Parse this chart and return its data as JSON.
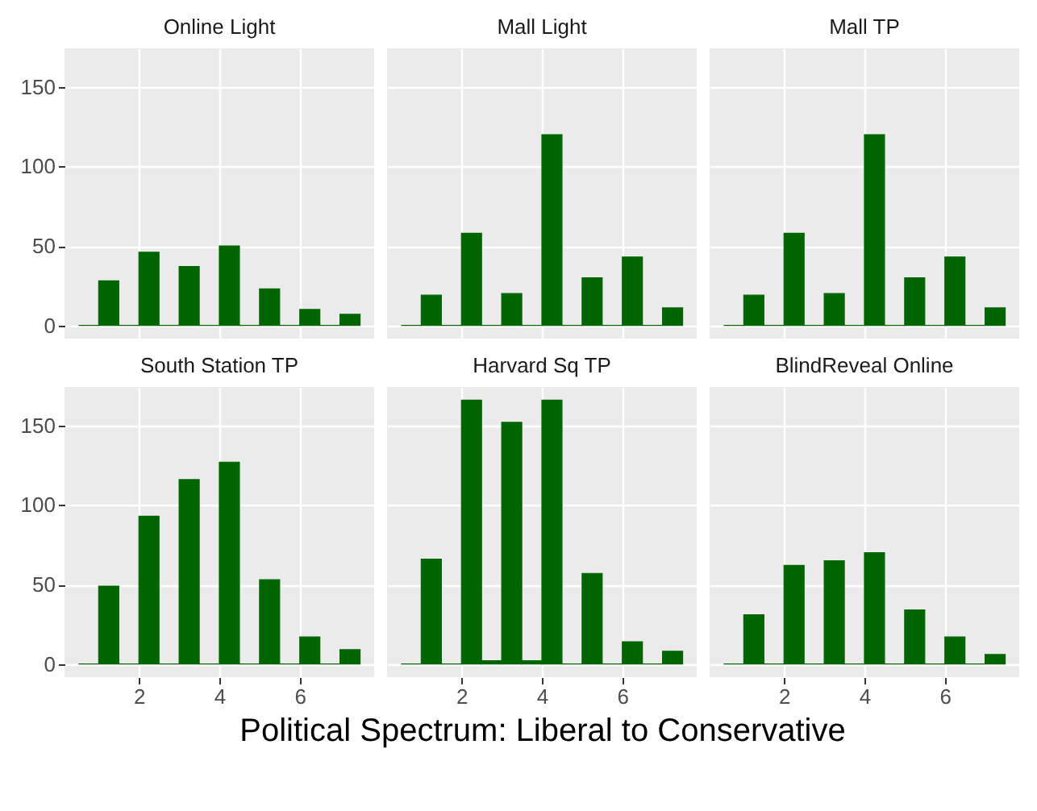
{
  "chart_data": [
    {
      "type": "histogram",
      "title": "Online Light",
      "color": "#006400",
      "bins": [
        0.5,
        1,
        1.5,
        2,
        2.5,
        3,
        3.5,
        4,
        4.5,
        5,
        5.5,
        6,
        6.5,
        7,
        7.5
      ],
      "values": [
        0,
        28,
        0,
        46,
        0,
        37,
        0,
        50,
        0,
        23,
        0,
        10,
        0,
        7
      ],
      "xlim": [
        0.15,
        7.85
      ],
      "xticks": [
        2,
        4,
        6
      ],
      "ylim": [
        -8.3,
        174.3
      ],
      "yticks": [
        0,
        50,
        100,
        150
      ],
      "grid": true,
      "tick_labels": "y"
    },
    {
      "type": "histogram",
      "title": "Mall Light",
      "color": "#006400",
      "bins": [
        0.5,
        1,
        1.5,
        2,
        2.5,
        3,
        3.5,
        4,
        4.5,
        5,
        5.5,
        6,
        6.5,
        7,
        7.5
      ],
      "values": [
        0,
        19,
        0,
        58,
        0,
        20,
        0,
        120,
        0,
        30,
        0,
        43,
        0,
        11
      ],
      "xlim": [
        0.15,
        7.85
      ],
      "xticks": [
        2,
        4,
        6
      ],
      "ylim": [
        -8.3,
        174.3
      ],
      "yticks": [
        0,
        50,
        100,
        150
      ],
      "grid": true,
      "tick_labels": false
    },
    {
      "type": "histogram",
      "title": "Mall TP",
      "color": "#006400",
      "bins": [
        0.5,
        1,
        1.5,
        2,
        2.5,
        3,
        3.5,
        4,
        4.5,
        5,
        5.5,
        6,
        6.5,
        7,
        7.5
      ],
      "values": [
        0,
        19,
        0,
        58,
        0,
        20,
        0,
        120,
        0,
        30,
        0,
        43,
        0,
        11
      ],
      "xlim": [
        0.15,
        7.85
      ],
      "xticks": [
        2,
        4,
        6
      ],
      "ylim": [
        -8.3,
        174.3
      ],
      "yticks": [
        0,
        50,
        100,
        150
      ],
      "grid": true,
      "tick_labels": false
    },
    {
      "type": "histogram",
      "title": "South Station TP",
      "color": "#006400",
      "bins": [
        0.5,
        1,
        1.5,
        2,
        2.5,
        3,
        3.5,
        4,
        4.5,
        5,
        5.5,
        6,
        6.5,
        7,
        7.5
      ],
      "values": [
        0,
        49,
        0,
        93,
        0,
        116,
        0,
        127,
        0,
        53,
        0,
        17,
        0,
        9
      ],
      "xlim": [
        0.15,
        7.85
      ],
      "xticks": [
        2,
        4,
        6
      ],
      "ylim": [
        -8.3,
        174.3
      ],
      "yticks": [
        0,
        50,
        100,
        150
      ],
      "grid": true
    },
    {
      "type": "histogram",
      "title": "Harvard Sq TP",
      "xlabel": "Political Spectrum: Liberal to Conservative",
      "color": "#006400",
      "bins": [
        0.5,
        1,
        1.5,
        2,
        2.5,
        3,
        3.5,
        4,
        4.5,
        5,
        5.5,
        6,
        6.5,
        7,
        7.5
      ],
      "values": [
        0,
        66,
        0,
        166,
        2,
        152,
        2,
        166,
        0,
        57,
        0,
        14,
        0,
        8
      ],
      "xlim": [
        0.15,
        7.85
      ],
      "xticks": [
        2,
        4,
        6
      ],
      "ylim": [
        -8.3,
        174.3
      ],
      "yticks": [
        0,
        50,
        100,
        150
      ],
      "grid": true,
      "tick_labels": "x"
    },
    {
      "type": "histogram",
      "title": "BlindReveal Online",
      "color": "#006400",
      "bins": [
        0.5,
        1,
        1.5,
        2,
        2.5,
        3,
        3.5,
        4,
        4.5,
        5,
        5.5,
        6,
        6.5,
        7,
        7.5
      ],
      "values": [
        0,
        31,
        0,
        62,
        0,
        65,
        0,
        70,
        0,
        34,
        0,
        17,
        0,
        6
      ],
      "xlim": [
        0.15,
        7.85
      ],
      "xticks": [
        2,
        4,
        6
      ],
      "ylim": [
        -8.3,
        174.3
      ],
      "yticks": [
        0,
        50,
        100,
        150
      ],
      "grid": true,
      "tick_labels": "x"
    }
  ]
}
